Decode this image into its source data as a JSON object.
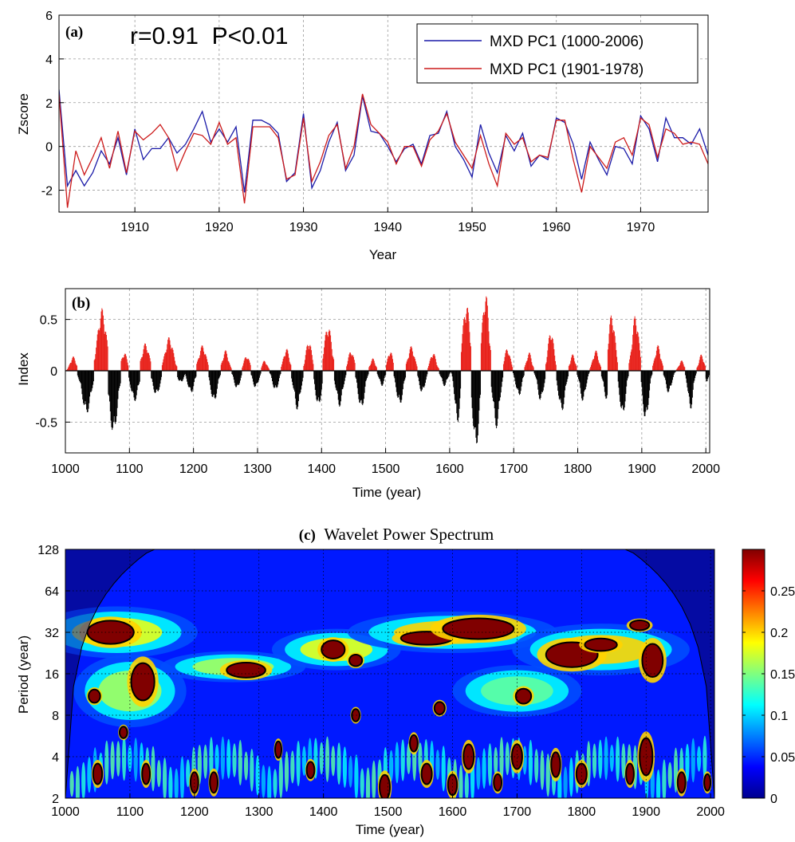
{
  "chart_data": [
    {
      "type": "line",
      "panel_label": "(a)",
      "annotation": "r=0.91  P<0.01",
      "xlabel": "Year",
      "ylabel": "Zscore",
      "xlim": [
        1901,
        1978
      ],
      "ylim": [
        -3,
        6
      ],
      "xticks": [
        1910,
        1920,
        1930,
        1940,
        1950,
        1960,
        1970
      ],
      "yticks": [
        -2,
        0,
        2,
        4,
        6
      ],
      "grid": true,
      "legend_position": "top-right",
      "x_start": 1901,
      "series": [
        {
          "name": "MXD PC1 (1000-2006)",
          "color": "#1a1aa8",
          "values": [
            2.6,
            -1.8,
            -1.1,
            -1.8,
            -1.2,
            -0.2,
            -0.8,
            0.4,
            -1.3,
            0.8,
            -0.6,
            -0.1,
            -0.1,
            0.4,
            -0.3,
            0.1,
            0.8,
            1.6,
            0.2,
            0.8,
            0.2,
            0.9,
            -2.1,
            1.2,
            1.2,
            1.0,
            0.6,
            -1.6,
            -1.2,
            1.5,
            -1.9,
            -1.1,
            0.2,
            1.1,
            -1.1,
            -0.4,
            2.3,
            0.7,
            0.6,
            0.0,
            -0.7,
            -0.1,
            0.1,
            -0.8,
            0.5,
            0.6,
            1.6,
            0.0,
            -0.6,
            -1.4,
            1.0,
            -0.3,
            -1.2,
            0.5,
            -0.2,
            0.6,
            -0.9,
            -0.4,
            -0.6,
            1.3,
            1.1,
            0.1,
            -1.5,
            0.2,
            -0.6,
            -1.3,
            0.0,
            -0.1,
            -0.8,
            1.4,
            0.8,
            -0.7,
            1.3,
            0.4,
            0.4,
            0.1,
            0.8,
            -0.4,
            0.2
          ]
        },
        {
          "name": "MXD PC1 (1901-1978)",
          "color": "#cc1a1a",
          "values": [
            2.4,
            -2.8,
            -0.2,
            -1.3,
            -0.5,
            0.4,
            -1.0,
            0.7,
            -1.2,
            0.7,
            0.3,
            0.6,
            1.0,
            0.4,
            -1.1,
            -0.2,
            0.6,
            0.5,
            0.1,
            1.1,
            0.1,
            0.4,
            -2.6,
            0.9,
            0.9,
            0.9,
            0.4,
            -1.5,
            -1.3,
            1.3,
            -1.6,
            -0.7,
            0.5,
            1.0,
            -1.0,
            0.0,
            2.4,
            1.0,
            0.6,
            0.2,
            -0.8,
            0.0,
            0.0,
            -0.9,
            0.3,
            0.7,
            1.5,
            0.2,
            -0.4,
            -1.0,
            0.5,
            -0.8,
            -1.8,
            0.6,
            0.1,
            0.4,
            -0.7,
            -0.4,
            -0.5,
            1.2,
            1.2,
            -0.6,
            -2.1,
            0.0,
            -0.5,
            -1.0,
            0.2,
            0.4,
            -0.4,
            1.3,
            1.0,
            -0.5,
            0.8,
            0.6,
            0.1,
            0.2,
            0.1,
            -0.8,
            -0.3
          ]
        }
      ]
    },
    {
      "type": "bar",
      "panel_label": "(b)",
      "xlabel": "Time (year)",
      "ylabel": "Index",
      "xlim": [
        1000,
        2006
      ],
      "ylim": [
        -0.8,
        0.8
      ],
      "xticks": [
        1000,
        1100,
        1200,
        1300,
        1400,
        1500,
        1600,
        1700,
        1800,
        1900,
        2000
      ],
      "yticks": [
        -0.5,
        0,
        0.5
      ],
      "ytick_labels": [
        "-0.5",
        "0",
        "0.5"
      ],
      "grid": true,
      "positive_color": "#e8211a",
      "negative_color": "#000000",
      "episodes": [
        {
          "center": 1012,
          "width": 8,
          "peak": 0.14
        },
        {
          "center": 1033,
          "width": 12,
          "peak": -0.42
        },
        {
          "center": 1057,
          "width": 12,
          "peak": 0.61
        },
        {
          "center": 1075,
          "width": 11,
          "peak": -0.62
        },
        {
          "center": 1092,
          "width": 8,
          "peak": 0.18
        },
        {
          "center": 1108,
          "width": 10,
          "peak": -0.3
        },
        {
          "center": 1125,
          "width": 10,
          "peak": 0.27
        },
        {
          "center": 1142,
          "width": 10,
          "peak": -0.24
        },
        {
          "center": 1162,
          "width": 11,
          "peak": 0.33
        },
        {
          "center": 1180,
          "width": 8,
          "peak": -0.12
        },
        {
          "center": 1196,
          "width": 9,
          "peak": -0.22
        },
        {
          "center": 1214,
          "width": 10,
          "peak": 0.25
        },
        {
          "center": 1232,
          "width": 9,
          "peak": -0.31
        },
        {
          "center": 1250,
          "width": 8,
          "peak": 0.2
        },
        {
          "center": 1268,
          "width": 8,
          "peak": -0.18
        },
        {
          "center": 1283,
          "width": 8,
          "peak": 0.15
        },
        {
          "center": 1297,
          "width": 8,
          "peak": -0.17
        },
        {
          "center": 1311,
          "width": 7,
          "peak": 0.1
        },
        {
          "center": 1328,
          "width": 8,
          "peak": -0.2
        },
        {
          "center": 1345,
          "width": 8,
          "peak": 0.22
        },
        {
          "center": 1362,
          "width": 9,
          "peak": -0.38
        },
        {
          "center": 1380,
          "width": 8,
          "peak": 0.3
        },
        {
          "center": 1395,
          "width": 8,
          "peak": -0.36
        },
        {
          "center": 1410,
          "width": 10,
          "peak": 0.45
        },
        {
          "center": 1428,
          "width": 9,
          "peak": -0.35
        },
        {
          "center": 1446,
          "width": 8,
          "peak": 0.2
        },
        {
          "center": 1462,
          "width": 9,
          "peak": -0.38
        },
        {
          "center": 1480,
          "width": 7,
          "peak": 0.12
        },
        {
          "center": 1494,
          "width": 7,
          "peak": -0.15
        },
        {
          "center": 1507,
          "width": 7,
          "peak": 0.2
        },
        {
          "center": 1522,
          "width": 9,
          "peak": -0.34
        },
        {
          "center": 1540,
          "width": 9,
          "peak": 0.24
        },
        {
          "center": 1557,
          "width": 8,
          "peak": -0.22
        },
        {
          "center": 1574,
          "width": 8,
          "peak": 0.18
        },
        {
          "center": 1592,
          "width": 8,
          "peak": -0.15
        },
        {
          "center": 1612,
          "width": 7,
          "peak": -0.52
        },
        {
          "center": 1626,
          "width": 10,
          "peak": 0.66
        },
        {
          "center": 1641,
          "width": 9,
          "peak": -0.76
        },
        {
          "center": 1656,
          "width": 9,
          "peak": 0.77
        },
        {
          "center": 1673,
          "width": 9,
          "peak": -0.56
        },
        {
          "center": 1690,
          "width": 8,
          "peak": 0.22
        },
        {
          "center": 1708,
          "width": 8,
          "peak": -0.25
        },
        {
          "center": 1724,
          "width": 7,
          "peak": 0.18
        },
        {
          "center": 1742,
          "width": 8,
          "peak": -0.3
        },
        {
          "center": 1758,
          "width": 8,
          "peak": 0.4
        },
        {
          "center": 1775,
          "width": 9,
          "peak": -0.4
        },
        {
          "center": 1792,
          "width": 7,
          "peak": 0.16
        },
        {
          "center": 1808,
          "width": 8,
          "peak": -0.3
        },
        {
          "center": 1828,
          "width": 8,
          "peak": 0.2
        },
        {
          "center": 1845,
          "width": 8,
          "peak": -0.28
        },
        {
          "center": 1853,
          "width": 9,
          "peak": 0.56
        },
        {
          "center": 1870,
          "width": 8,
          "peak": -0.45
        },
        {
          "center": 1890,
          "width": 9,
          "peak": 0.55
        },
        {
          "center": 1906,
          "width": 8,
          "peak": -0.5
        },
        {
          "center": 1925,
          "width": 8,
          "peak": 0.25
        },
        {
          "center": 1942,
          "width": 8,
          "peak": -0.22
        },
        {
          "center": 1962,
          "width": 7,
          "peak": 0.1
        },
        {
          "center": 1976,
          "width": 7,
          "peak": -0.38
        },
        {
          "center": 1993,
          "width": 7,
          "peak": 0.16
        },
        {
          "center": 2002,
          "width": 4,
          "peak": -0.12
        }
      ]
    },
    {
      "type": "heatmap",
      "panel_label": "(c)",
      "title": "Wavelet Power Spectrum",
      "xlabel": "Time (year)",
      "ylabel": "Period (year)",
      "xlim": [
        1000,
        2006
      ],
      "ylim": [
        2,
        128
      ],
      "y_scale": "log2",
      "xticks": [
        1000,
        1100,
        1200,
        1300,
        1400,
        1500,
        1600,
        1700,
        1800,
        1900,
        2000
      ],
      "yticks": [
        2,
        4,
        8,
        16,
        32,
        64,
        128
      ],
      "colorbar_ticks": [
        0,
        0.05,
        0.1,
        0.15,
        0.2,
        0.25
      ],
      "colorbar_max": 0.3,
      "significant_regions": [
        {
          "center": [
            1070,
            32
          ],
          "extent_years": [
            36,
            0.28
          ],
          "power": 0.34
        },
        {
          "center": [
            1120,
            14
          ],
          "extent_years": [
            18,
            0.45
          ],
          "power": 0.34
        },
        {
          "center": [
            1045,
            11
          ],
          "extent_years": [
            9,
            0.16
          ],
          "power": 0.32
        },
        {
          "center": [
            1280,
            17
          ],
          "extent_years": [
            30,
            0.18
          ],
          "power": 0.33
        },
        {
          "center": [
            1415,
            24
          ],
          "extent_years": [
            18,
            0.22
          ],
          "power": 0.33
        },
        {
          "center": [
            1450,
            20
          ],
          "extent_years": [
            10,
            0.14
          ],
          "power": 0.32
        },
        {
          "center": [
            1560,
            29
          ],
          "extent_years": [
            40,
            0.16
          ],
          "power": 0.33
        },
        {
          "center": [
            1640,
            34
          ],
          "extent_years": [
            55,
            0.25
          ],
          "power": 0.35
        },
        {
          "center": [
            1785,
            22
          ],
          "extent_years": [
            40,
            0.3
          ],
          "power": 0.34
        },
        {
          "center": [
            1830,
            26
          ],
          "extent_years": [
            25,
            0.15
          ],
          "power": 0.32
        },
        {
          "center": [
            1890,
            36
          ],
          "extent_years": [
            15,
            0.12
          ],
          "power": 0.32
        },
        {
          "center": [
            1910,
            20
          ],
          "extent_years": [
            16,
            0.4
          ],
          "power": 0.34
        },
        {
          "center": [
            1710,
            11
          ],
          "extent_years": [
            12,
            0.18
          ],
          "power": 0.32
        },
        {
          "center": [
            1580,
            9
          ],
          "extent_years": [
            8,
            0.15
          ],
          "power": 0.31
        },
        {
          "center": [
            1450,
            8
          ],
          "extent_years": [
            6,
            0.15
          ],
          "power": 0.31
        },
        {
          "center": [
            1090,
            6
          ],
          "extent_years": [
            6,
            0.14
          ],
          "power": 0.31
        },
        {
          "center": [
            1050,
            3
          ],
          "extent_years": [
            7,
            0.25
          ],
          "power": 0.32
        },
        {
          "center": [
            1125,
            3
          ],
          "extent_years": [
            6,
            0.25
          ],
          "power": 0.32
        },
        {
          "center": [
            1200,
            2.6
          ],
          "extent_years": [
            6,
            0.25
          ],
          "power": 0.32
        },
        {
          "center": [
            1230,
            2.6
          ],
          "extent_years": [
            6,
            0.25
          ],
          "power": 0.32
        },
        {
          "center": [
            1330,
            4.5
          ],
          "extent_years": [
            5,
            0.2
          ],
          "power": 0.31
        },
        {
          "center": [
            1380,
            3.2
          ],
          "extent_years": [
            6,
            0.2
          ],
          "power": 0.31
        },
        {
          "center": [
            1495,
            2.4
          ],
          "extent_years": [
            8,
            0.3
          ],
          "power": 0.32
        },
        {
          "center": [
            1540,
            5
          ],
          "extent_years": [
            6,
            0.2
          ],
          "power": 0.31
        },
        {
          "center": [
            1560,
            3
          ],
          "extent_years": [
            8,
            0.25
          ],
          "power": 0.32
        },
        {
          "center": [
            1625,
            4
          ],
          "extent_years": [
            8,
            0.3
          ],
          "power": 0.32
        },
        {
          "center": [
            1600,
            2.5
          ],
          "extent_years": [
            7,
            0.25
          ],
          "power": 0.32
        },
        {
          "center": [
            1700,
            4
          ],
          "extent_years": [
            8,
            0.3
          ],
          "power": 0.32
        },
        {
          "center": [
            1670,
            2.6
          ],
          "extent_years": [
            6,
            0.2
          ],
          "power": 0.31
        },
        {
          "center": [
            1760,
            3.5
          ],
          "extent_years": [
            7,
            0.3
          ],
          "power": 0.32
        },
        {
          "center": [
            1800,
            3
          ],
          "extent_years": [
            8,
            0.25
          ],
          "power": 0.32
        },
        {
          "center": [
            1875,
            3
          ],
          "extent_years": [
            6,
            0.25
          ],
          "power": 0.32
        },
        {
          "center": [
            1900,
            4
          ],
          "extent_years": [
            10,
            0.45
          ],
          "power": 0.33
        },
        {
          "center": [
            1955,
            2.6
          ],
          "extent_years": [
            6,
            0.25
          ],
          "power": 0.32
        },
        {
          "center": [
            1995,
            2.6
          ],
          "extent_years": [
            5,
            0.2
          ],
          "power": 0.31
        }
      ],
      "band_regions": [
        {
          "center": [
            1080,
            32
          ],
          "extent_years": [
            100,
            0.5
          ],
          "power": 0.18
        },
        {
          "center": [
            1260,
            18
          ],
          "extent_years": [
            90,
            0.3
          ],
          "power": 0.16
        },
        {
          "center": [
            1420,
            24
          ],
          "extent_years": [
            80,
            0.4
          ],
          "power": 0.18
        },
        {
          "center": [
            1600,
            32
          ],
          "extent_years": [
            130,
            0.4
          ],
          "power": 0.2
        },
        {
          "center": [
            1830,
            24
          ],
          "extent_years": [
            110,
            0.5
          ],
          "power": 0.2
        },
        {
          "center": [
            1100,
            12
          ],
          "extent_years": [
            70,
            0.7
          ],
          "power": 0.16
        },
        {
          "center": [
            1700,
            12
          ],
          "extent_years": [
            80,
            0.5
          ],
          "power": 0.14
        }
      ]
    }
  ]
}
